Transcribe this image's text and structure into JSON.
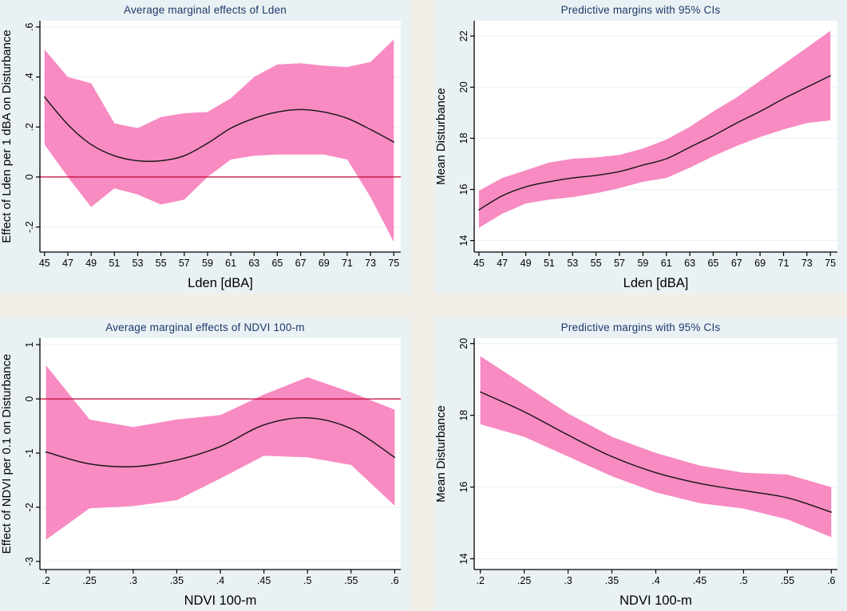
{
  "theme": {
    "page_bg": "#f2efe9",
    "panel_bg": "#e9f1f4",
    "plot_bg": "#ffffff",
    "grid_color": "#e8eff4",
    "band_color": "#f78bc2",
    "line_color": "#141414",
    "zero_line_color": "#c10534",
    "axis_color": "#000000",
    "tick_color": "#000000",
    "title_color": "#20386a"
  },
  "chart_data": [
    {
      "type": "line",
      "title": "Average marginal effects of Lden",
      "xlabel": "Lden [dBA]",
      "ylabel": "Effect of Lden per 1 dBA on Disturbance",
      "band_meaning": "95% CI",
      "x": [
        45,
        47,
        49,
        51,
        53,
        55,
        57,
        59,
        61,
        63,
        65,
        67,
        69,
        71,
        73,
        75
      ],
      "line_values": [
        0.32,
        0.21,
        0.13,
        0.085,
        0.065,
        0.065,
        0.085,
        0.135,
        0.195,
        0.235,
        0.26,
        0.27,
        0.26,
        0.235,
        0.19,
        0.14
      ],
      "ci_upper": [
        0.51,
        0.4,
        0.375,
        0.215,
        0.195,
        0.24,
        0.255,
        0.26,
        0.315,
        0.4,
        0.45,
        0.455,
        0.445,
        0.44,
        0.46,
        0.55
      ],
      "ci_lower": [
        0.13,
        0.0,
        -0.12,
        -0.045,
        -0.07,
        -0.11,
        -0.09,
        0.0,
        0.07,
        0.085,
        0.09,
        0.09,
        0.09,
        0.07,
        -0.08,
        -0.26
      ],
      "xticks": [
        45,
        47,
        49,
        51,
        53,
        55,
        57,
        59,
        61,
        63,
        65,
        67,
        69,
        71,
        73,
        75
      ],
      "xtick_labels": [
        "45",
        "47",
        "49",
        "51",
        "53",
        "55",
        "57",
        "59",
        "61",
        "63",
        "65",
        "67",
        "69",
        "71",
        "73",
        "75"
      ],
      "yticks": [
        0.6,
        0.4,
        0.2,
        0,
        -0.2
      ],
      "ytick_labels": [
        ".6",
        ".4",
        ".2",
        "0",
        "-.2"
      ],
      "xlim": [
        44.6,
        75.6
      ],
      "ylim": [
        -0.3,
        0.625
      ],
      "zero_line": true,
      "grid": "horizontal",
      "legend": "none"
    },
    {
      "type": "line",
      "title": "Predictive margins with 95% CIs",
      "xlabel": "Lden [dBA]",
      "ylabel": "Mean Disturbance",
      "band_meaning": "95% CI",
      "x": [
        45,
        47,
        49,
        51,
        53,
        55,
        57,
        59,
        61,
        63,
        65,
        67,
        69,
        71,
        73,
        75
      ],
      "line_values": [
        15.2,
        15.75,
        16.1,
        16.3,
        16.45,
        16.55,
        16.7,
        16.95,
        17.2,
        17.65,
        18.1,
        18.6,
        19.05,
        19.55,
        20.0,
        20.45
      ],
      "ci_upper": [
        15.95,
        16.45,
        16.75,
        17.05,
        17.2,
        17.25,
        17.35,
        17.6,
        17.95,
        18.45,
        19.05,
        19.6,
        20.25,
        20.9,
        21.55,
        22.2
      ],
      "ci_lower": [
        14.5,
        15.05,
        15.45,
        15.6,
        15.7,
        15.85,
        16.05,
        16.3,
        16.45,
        16.85,
        17.3,
        17.7,
        18.05,
        18.35,
        18.6,
        18.7
      ],
      "xticks": [
        45,
        47,
        49,
        51,
        53,
        55,
        57,
        59,
        61,
        63,
        65,
        67,
        69,
        71,
        73,
        75
      ],
      "xtick_labels": [
        "45",
        "47",
        "49",
        "51",
        "53",
        "55",
        "57",
        "59",
        "61",
        "63",
        "65",
        "67",
        "69",
        "71",
        "73",
        "75"
      ],
      "yticks": [
        22,
        20,
        18,
        16,
        14
      ],
      "ytick_labels": [
        "22",
        "20",
        "18",
        "16",
        "14"
      ],
      "xlim": [
        44.6,
        75.6
      ],
      "ylim": [
        13.55,
        22.6
      ],
      "zero_line": false,
      "grid": "horizontal",
      "legend": "none"
    },
    {
      "type": "line",
      "title": "Average marginal effects of NDVI 100-m",
      "xlabel": "NDVI 100-m",
      "ylabel": "Effect of NDVI per 0.1 on Disturbance",
      "band_meaning": "95% CI",
      "x": [
        0.2,
        0.25,
        0.3,
        0.35,
        0.4,
        0.45,
        0.5,
        0.55,
        0.6
      ],
      "line_values": [
        -0.98,
        -1.2,
        -1.25,
        -1.13,
        -0.88,
        -0.48,
        -0.35,
        -0.55,
        -1.08
      ],
      "ci_upper": [
        0.62,
        -0.38,
        -0.52,
        -0.38,
        -0.3,
        0.08,
        0.4,
        0.12,
        -0.2
      ],
      "ci_lower": [
        -2.6,
        -2.02,
        -1.98,
        -1.87,
        -1.47,
        -1.05,
        -1.08,
        -1.22,
        -1.97
      ],
      "xticks": [
        0.2,
        0.25,
        0.3,
        0.35,
        0.4,
        0.45,
        0.5,
        0.55,
        0.6
      ],
      "xtick_labels": [
        ".2",
        ".25",
        ".3",
        ".35",
        ".4",
        ".45",
        ".5",
        ".55",
        ".6"
      ],
      "yticks": [
        1,
        0,
        -1,
        -2,
        -3
      ],
      "ytick_labels": [
        "1",
        "0",
        "-1",
        "-2",
        "-3"
      ],
      "xlim": [
        0.193,
        0.607
      ],
      "ylim": [
        -3.15,
        1.12
      ],
      "zero_line": true,
      "grid": "horizontal",
      "legend": "none"
    },
    {
      "type": "line",
      "title": "Predictive margins with 95% CIs",
      "xlabel": "NDVI 100-m",
      "ylabel": "Mean Disturbance",
      "band_meaning": "95% CI",
      "x": [
        0.2,
        0.25,
        0.3,
        0.35,
        0.4,
        0.45,
        0.5,
        0.55,
        0.6
      ],
      "line_values": [
        18.65,
        18.1,
        17.45,
        16.85,
        16.4,
        16.1,
        15.9,
        15.7,
        15.3
      ],
      "ci_upper": [
        19.65,
        18.85,
        18.05,
        17.4,
        16.95,
        16.6,
        16.4,
        16.35,
        16.0
      ],
      "ci_lower": [
        17.75,
        17.4,
        16.85,
        16.3,
        15.85,
        15.55,
        15.4,
        15.1,
        14.6
      ],
      "xticks": [
        0.2,
        0.25,
        0.3,
        0.35,
        0.4,
        0.45,
        0.5,
        0.55,
        0.6
      ],
      "xtick_labels": [
        ".2",
        ".25",
        ".3",
        ".35",
        ".4",
        ".45",
        ".5",
        ".55",
        ".6"
      ],
      "yticks": [
        20,
        18,
        16,
        14
      ],
      "ytick_labels": [
        "20",
        "18",
        "16",
        "14"
      ],
      "xlim": [
        0.193,
        0.607
      ],
      "ylim": [
        13.7,
        20.15
      ],
      "zero_line": false,
      "grid": "horizontal",
      "legend": "none"
    }
  ]
}
